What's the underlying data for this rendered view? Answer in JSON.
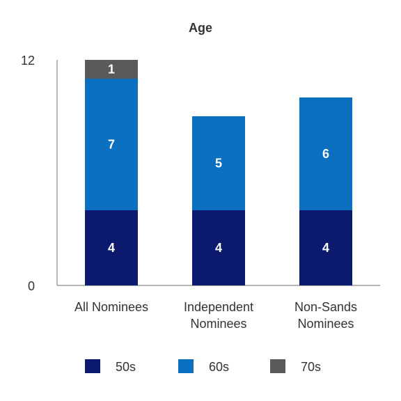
{
  "chart_data": {
    "type": "bar",
    "stacked": true,
    "title": "Age",
    "xlabel": "",
    "ylabel": "",
    "ylim": [
      0,
      12
    ],
    "yticks": [
      "0",
      "12"
    ],
    "grid": false,
    "legend_position": "bottom",
    "categories": [
      [
        "All Nominees"
      ],
      [
        "Independent",
        "Nominees"
      ],
      [
        "Non-Sands",
        "Nominees"
      ]
    ],
    "series": [
      {
        "name": "50s",
        "color": "#0b1a6e",
        "values": [
          4,
          4,
          4
        ]
      },
      {
        "name": "60s",
        "color": "#0a70bf",
        "values": [
          7,
          5,
          6
        ]
      },
      {
        "name": "70s",
        "color": "#5a5a5a",
        "values": [
          1,
          0,
          0
        ]
      }
    ]
  }
}
